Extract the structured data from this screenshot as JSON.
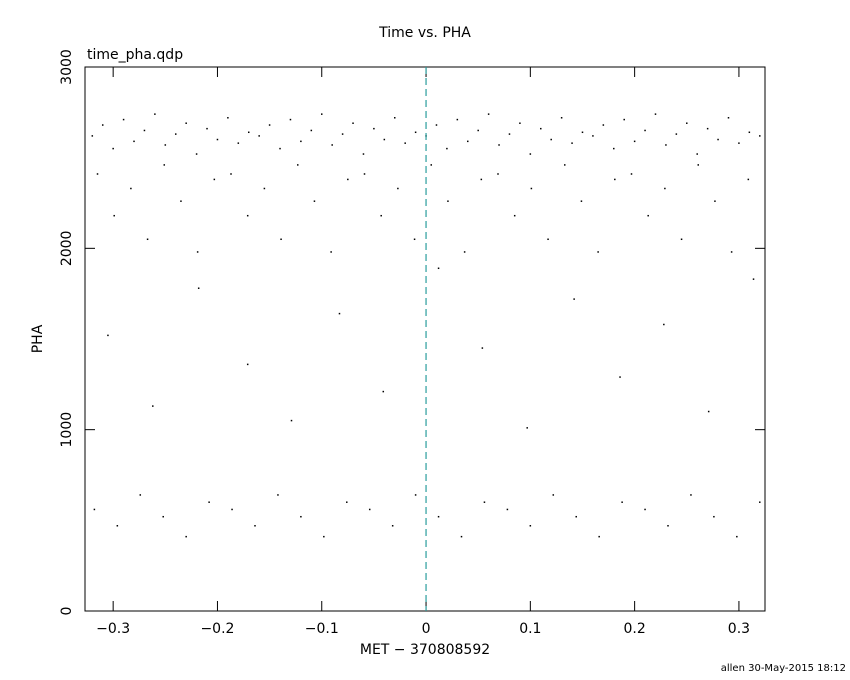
{
  "chart_data": {
    "type": "scatter",
    "title": "Time vs. PHA",
    "subtitle": "time_pha.qdp",
    "x_label": "MET − 370808592",
    "y_label": "PHA",
    "footer": "allen 30-May-2015 18:12",
    "xlim": [
      -0.327,
      0.325
    ],
    "ylim": [
      0,
      3000
    ],
    "xticks": [
      {
        "value": -0.3,
        "label": "−0.3"
      },
      {
        "value": -0.2,
        "label": "−0.2"
      },
      {
        "value": -0.1,
        "label": "−0.1"
      },
      0,
      0.1,
      0.2,
      0.3
    ],
    "yticks": [
      0,
      1000,
      2000,
      3000
    ],
    "reference_line": {
      "x": 0,
      "color": "#2a9d9d"
    },
    "series": [
      {
        "color": "#000000",
        "x": [
          -0.32,
          -0.31,
          -0.3,
          -0.29,
          -0.28,
          -0.27,
          -0.26,
          -0.25,
          -0.24,
          -0.23,
          -0.22,
          -0.21,
          -0.2,
          -0.19,
          -0.18,
          -0.17,
          -0.16,
          -0.15,
          -0.14,
          -0.13,
          -0.12,
          -0.11,
          -0.1,
          -0.09,
          -0.08,
          -0.07,
          -0.06,
          -0.05,
          -0.04,
          -0.03,
          -0.02,
          -0.01,
          0,
          0.01,
          0.02,
          0.03,
          0.04,
          0.05,
          0.06,
          0.07,
          0.08,
          0.09,
          0.1,
          0.11,
          0.12,
          0.13,
          0.14,
          0.15,
          0.16,
          0.17,
          0.18,
          0.19,
          0.2,
          0.21,
          0.22,
          0.23,
          0.24,
          0.25,
          0.26,
          0.27,
          0.28,
          0.29,
          0.3,
          0.31,
          0.32,
          -0.315,
          -0.299,
          -0.283,
          -0.267,
          -0.251,
          -0.235,
          -0.219,
          -0.203,
          -0.187,
          -0.171,
          -0.155,
          -0.139,
          -0.123,
          -0.107,
          -0.091,
          -0.075,
          -0.059,
          -0.043,
          -0.027,
          -0.011,
          0.005,
          0.021,
          0.037,
          0.053,
          0.069,
          0.085,
          0.101,
          0.117,
          0.133,
          0.149,
          0.165,
          0.181,
          0.197,
          0.213,
          0.229,
          0.245,
          0.261,
          0.277,
          0.293,
          0.309,
          -0.305,
          -0.262,
          -0.218,
          -0.171,
          -0.129,
          -0.083,
          -0.041,
          0.012,
          0.054,
          0.097,
          0.142,
          0.186,
          0.228,
          0.271,
          0.314,
          -0.318,
          -0.296,
          -0.274,
          -0.252,
          -0.23,
          -0.208,
          -0.186,
          -0.164,
          -0.142,
          -0.12,
          -0.098,
          -0.076,
          -0.054,
          -0.032,
          -0.01,
          0.012,
          0.034,
          0.056,
          0.078,
          0.1,
          0.122,
          0.144,
          0.166,
          0.188,
          0.21,
          0.232,
          0.254,
          0.276,
          0.298,
          0.32
        ],
        "values": [
          2620,
          2680,
          2550,
          2710,
          2590,
          2650,
          2740,
          2570,
          2630,
          2690,
          2520,
          2660,
          2600,
          2720,
          2580,
          2640,
          2620,
          2680,
          2550,
          2710,
          2590,
          2650,
          2740,
          2570,
          2630,
          2690,
          2520,
          2660,
          2600,
          2720,
          2580,
          2640,
          2620,
          2680,
          2550,
          2710,
          2590,
          2650,
          2740,
          2570,
          2630,
          2690,
          2520,
          2660,
          2600,
          2720,
          2580,
          2640,
          2620,
          2680,
          2550,
          2710,
          2590,
          2650,
          2740,
          2570,
          2630,
          2690,
          2520,
          2660,
          2600,
          2720,
          2580,
          2640,
          2620,
          2410,
          2180,
          2330,
          2050,
          2460,
          2260,
          1980,
          2380,
          2410,
          2180,
          2330,
          2050,
          2460,
          2260,
          1980,
          2380,
          2410,
          2180,
          2330,
          2050,
          2460,
          2260,
          1980,
          2380,
          2410,
          2180,
          2330,
          2050,
          2460,
          2260,
          1980,
          2380,
          2410,
          2180,
          2330,
          2050,
          2460,
          2260,
          1980,
          2380,
          1520,
          1130,
          1780,
          1360,
          1050,
          1640,
          1210,
          1890,
          1450,
          1010,
          1720,
          1290,
          1580,
          1100,
          1830,
          560,
          470,
          640,
          520,
          410,
          600,
          560,
          470,
          640,
          520,
          410,
          600,
          560,
          470,
          640,
          520,
          410,
          600,
          560,
          470,
          640,
          520,
          410,
          600,
          560,
          470,
          640,
          520,
          410,
          600
        ]
      }
    ]
  }
}
